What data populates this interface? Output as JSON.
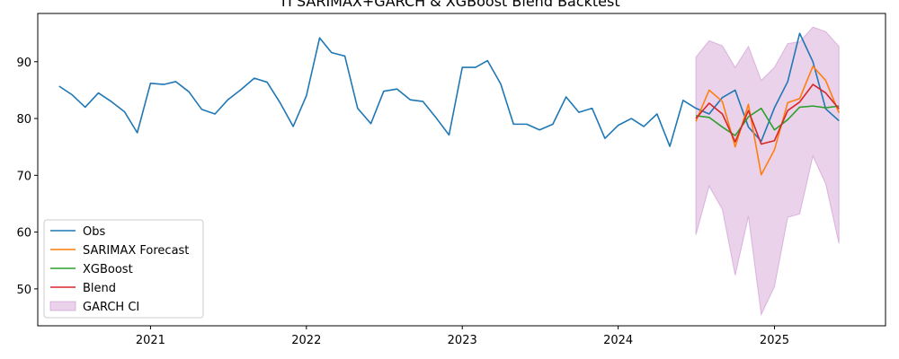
{
  "chart_data": {
    "type": "line",
    "title": "TI SARIMAX+GARCH & XGBoost Blend Backtest",
    "xlabel": "",
    "ylabel": "",
    "x_ticks": [
      "2021",
      "2022",
      "2023",
      "2024",
      "2025"
    ],
    "y_ticks": [
      50,
      60,
      70,
      80,
      90
    ],
    "xlim": [
      "2020-04-12",
      "2025-09-18"
    ],
    "ylim": [
      43.5,
      98.5
    ],
    "grid": false,
    "legend_position": "lower-left",
    "legend": [
      "Obs",
      "SARIMAX Forecast",
      "XGBoost",
      "Blend",
      "GARCH CI"
    ],
    "colors": {
      "Obs": "#1f77b4",
      "SARIMAX Forecast": "#ff7f0e",
      "XGBoost": "#2ca02c",
      "Blend": "#d62728",
      "GARCH CI": "#c27fc6"
    },
    "obs": {
      "x": [
        "2020-06",
        "2020-07",
        "2020-08",
        "2020-09",
        "2020-10",
        "2020-11",
        "2020-12",
        "2021-01",
        "2021-02",
        "2021-03",
        "2021-04",
        "2021-05",
        "2021-06",
        "2021-07",
        "2021-08",
        "2021-09",
        "2021-10",
        "2021-11",
        "2021-12",
        "2022-01",
        "2022-02",
        "2022-03",
        "2022-04",
        "2022-05",
        "2022-06",
        "2022-07",
        "2022-08",
        "2022-09",
        "2022-10",
        "2022-11",
        "2022-12",
        "2023-01",
        "2023-02",
        "2023-03",
        "2023-04",
        "2023-05",
        "2023-06",
        "2023-07",
        "2023-08",
        "2023-09",
        "2023-10",
        "2023-11",
        "2023-12",
        "2024-01",
        "2024-02",
        "2024-03",
        "2024-04",
        "2024-05",
        "2024-06",
        "2024-07",
        "2024-08",
        "2024-09",
        "2024-10",
        "2024-11",
        "2024-12",
        "2025-01",
        "2025-02",
        "2025-03",
        "2025-04",
        "2025-05",
        "2025-06"
      ],
      "y": [
        85.7,
        84.2,
        82.0,
        84.5,
        83.0,
        81.2,
        77.5,
        86.2,
        86.0,
        86.5,
        84.7,
        81.6,
        80.8,
        83.3,
        85.1,
        87.1,
        86.4,
        82.7,
        78.6,
        84.0,
        94.2,
        91.6,
        91.0,
        81.8,
        79.1,
        84.8,
        85.2,
        83.3,
        83.0,
        80.1,
        77.1,
        89.0,
        89.0,
        90.2,
        86.1,
        79.0,
        79.0,
        78.0,
        79.0,
        83.8,
        81.1,
        81.8,
        76.5,
        78.8,
        80.0,
        78.6,
        80.8,
        75.1,
        83.2,
        81.8,
        80.8,
        83.7,
        85.0,
        78.5,
        76.0,
        81.9,
        86.5,
        95.0,
        90.0,
        81.7,
        79.6
      ]
    },
    "forecast_x": [
      "2024-07",
      "2024-08",
      "2024-09",
      "2024-10",
      "2024-11",
      "2024-12",
      "2025-01",
      "2025-02",
      "2025-03",
      "2025-04",
      "2025-05",
      "2025-06"
    ],
    "series": [
      {
        "name": "SARIMAX Forecast",
        "values": [
          79.5,
          85.0,
          83.0,
          75.0,
          82.5,
          70.1,
          74.5,
          82.8,
          83.5,
          89.2,
          86.7,
          81.0
        ]
      },
      {
        "name": "XGBoost",
        "values": [
          80.5,
          80.2,
          78.5,
          77.0,
          80.3,
          81.8,
          78.0,
          79.8,
          82.0,
          82.2,
          81.9,
          82.2
        ]
      },
      {
        "name": "Blend",
        "values": [
          80.0,
          82.7,
          80.8,
          75.9,
          81.4,
          75.5,
          76.1,
          81.4,
          82.9,
          86.0,
          84.5,
          81.7
        ]
      }
    ],
    "garch_ci": {
      "upper": [
        90.8,
        93.7,
        92.8,
        89.0,
        92.7,
        86.7,
        89.0,
        93.2,
        93.5,
        96.1,
        95.3,
        92.7
      ],
      "lower": [
        59.5,
        68.1,
        64.0,
        52.4,
        62.8,
        45.5,
        50.4,
        62.6,
        63.2,
        73.4,
        68.5,
        58.0
      ]
    }
  }
}
